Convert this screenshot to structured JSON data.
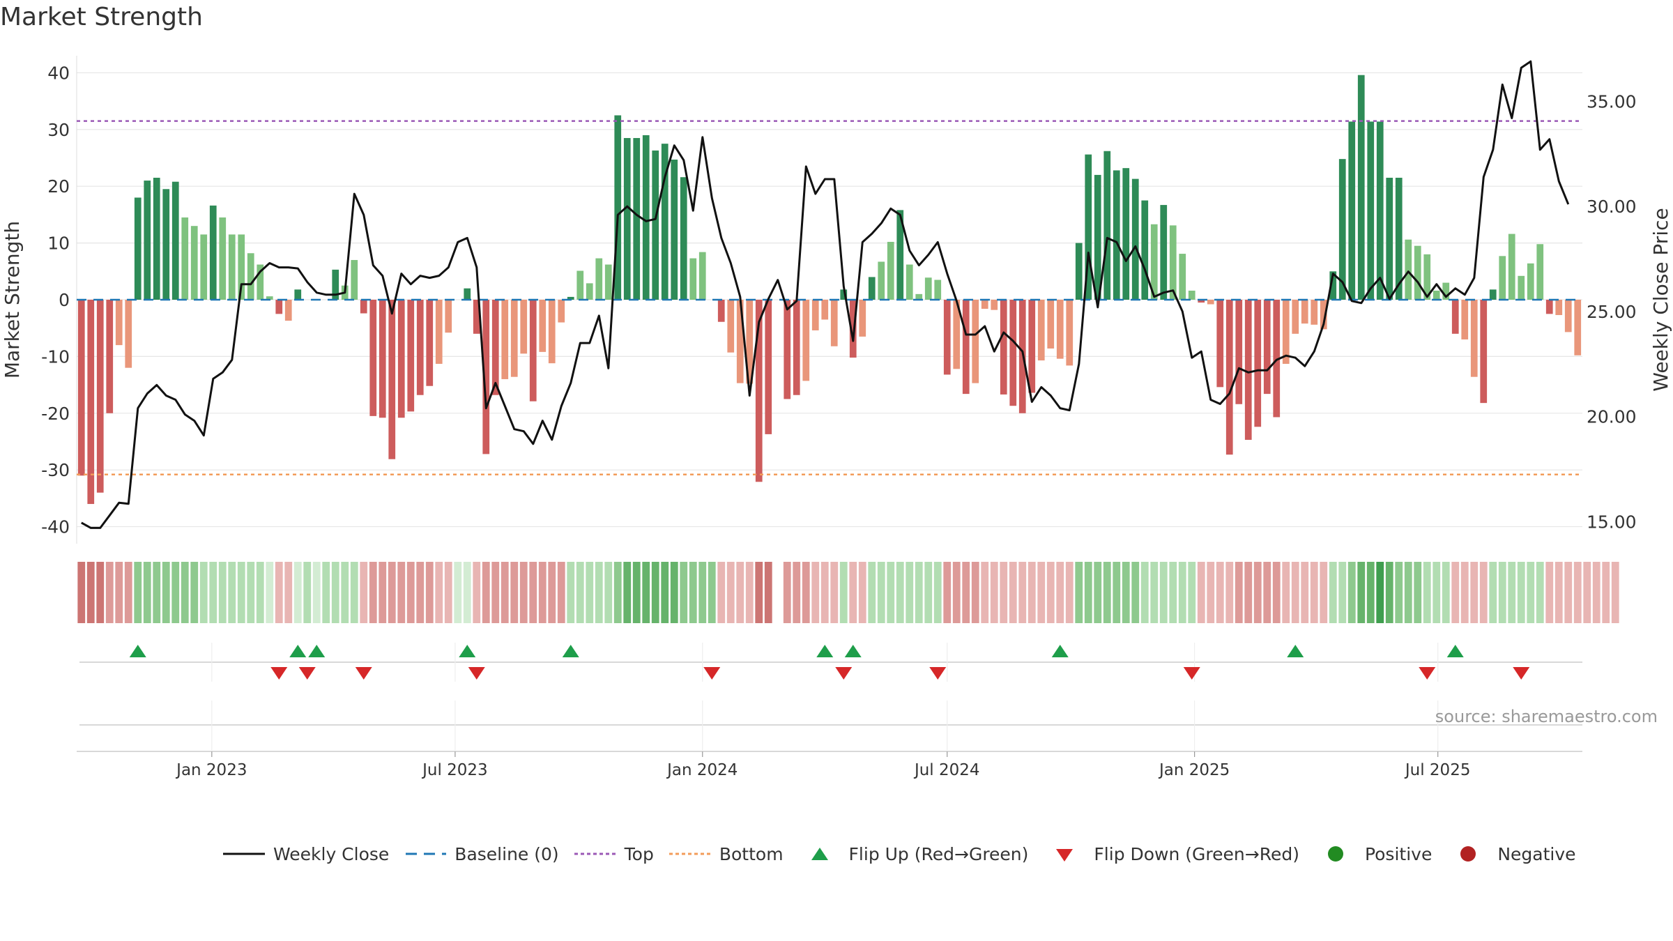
{
  "title": "Market Strength",
  "source": "source: sharemaestro.com",
  "colors": {
    "pos_dark": "#2e8b57",
    "pos_light": "#7fc27f",
    "neg_dark": "#cd5c5c",
    "neg_light": "#e9967a",
    "line": "#111111",
    "baseline": "#1f77b4",
    "top": "#9b59b6",
    "bottom": "#f39c5a",
    "flip_up": "#1e9e4a",
    "flip_down": "#d62728",
    "positive": "#228b22",
    "negative": "#b22222"
  },
  "legend": [
    {
      "key": "line",
      "label": "Weekly Close"
    },
    {
      "key": "baseline",
      "label": "Baseline (0)"
    },
    {
      "key": "top",
      "label": "Top"
    },
    {
      "key": "bottom",
      "label": "Bottom"
    },
    {
      "key": "flip_up",
      "label": "Flip Up (Red→Green)"
    },
    {
      "key": "flip_down",
      "label": "Flip Down (Green→Red)"
    },
    {
      "key": "positive",
      "label": "Positive"
    },
    {
      "key": "negative",
      "label": "Negative"
    }
  ],
  "chart_data": {
    "type": "bar",
    "x_start": "2022-09-26",
    "x_step_days": 7,
    "x_ticks": [
      "Jan 2023",
      "Jul 2023",
      "Jan 2024",
      "Jul 2024",
      "Jan 2025",
      "Jul 2025"
    ],
    "x_tick_dates": [
      "2023-01-01",
      "2023-07-01",
      "2024-01-01",
      "2024-07-01",
      "2025-01-01",
      "2025-07-01"
    ],
    "ylabel": "Market Strength",
    "y2label": "Weekly Close Price",
    "ylim": [
      -43,
      43
    ],
    "y_ticks": [
      40,
      30,
      20,
      10,
      0,
      -10,
      -20,
      -30,
      -40
    ],
    "y2lim": [
      13.95,
      37.17
    ],
    "y2_ticks": [
      "35.00",
      "30.00",
      "25.00",
      "20.00",
      "15.00"
    ],
    "top_level": 31.5,
    "bottom_level": -30.8,
    "strength": [
      -31,
      -36,
      -34,
      -20,
      -8,
      -12,
      18,
      21,
      21.5,
      19.5,
      20.8,
      14.5,
      13,
      11.5,
      16.6,
      14.5,
      11.5,
      11.5,
      8.2,
      6.2,
      0.6,
      -2.5,
      -3.7,
      1.8,
      0,
      0,
      0,
      5.3,
      2.5,
      7,
      -2.4,
      -20.5,
      -20.8,
      -28.1,
      -20.8,
      -19.7,
      -16.8,
      -15.2,
      -11.3,
      -5.8,
      0,
      2,
      -6,
      -27.2,
      -16.8,
      -14,
      -13.6,
      -9.5,
      -17.9,
      -9.2,
      -11.2,
      -4,
      0.5,
      5.1,
      2.9,
      7.3,
      6.2,
      32.5,
      28.5,
      28.5,
      29,
      26.3,
      27.5,
      24.7,
      21.6,
      7.3,
      8.4,
      0,
      -3.9,
      -9.3,
      -14.7,
      -14.8,
      -32.1,
      -23.7,
      0,
      -17.5,
      -16.8,
      -14.3,
      -5.4,
      -3.5,
      -8.2,
      1.8,
      -10.2,
      -6.5,
      4,
      6.7,
      10.2,
      15.8,
      6.2,
      1,
      3.9,
      3.5,
      -13.2,
      -12.2,
      -16.6,
      -14.7,
      -1.6,
      -1.8,
      -16.7,
      -18.7,
      -20,
      -16.4,
      -10.7,
      -8.6,
      -10.4,
      -11.6,
      10,
      25.6,
      22,
      26.2,
      22.8,
      23.2,
      21.3,
      17.5,
      13.3,
      16.7,
      13.1,
      8.1,
      1.6,
      -0.5,
      -0.8,
      -15.4,
      -27.3,
      -18.4,
      -24.7,
      -22.4,
      -16.6,
      -20.7,
      -11.3,
      -6,
      -4.2,
      -4.4,
      -5.2,
      5,
      24.8,
      31.4,
      39.6,
      31.4,
      31.4,
      21.5,
      21.5,
      10.6,
      9.5,
      8,
      1.6,
      3,
      -6,
      -7,
      -13.6,
      -18.2,
      1.8,
      7.7,
      11.6,
      4.2,
      6.4,
      9.8,
      -2.5,
      -2.7,
      -5.7,
      -9.8
    ],
    "close": [
      14.95,
      14.7,
      14.7,
      15.3,
      15.9,
      15.85,
      20.4,
      21.1,
      21.5,
      21,
      20.8,
      20.1,
      19.8,
      19.1,
      21.8,
      22.1,
      22.7,
      26.3,
      26.3,
      26.9,
      27.3,
      27.1,
      27.1,
      27.05,
      26.4,
      25.9,
      25.8,
      25.8,
      25.9,
      30.6,
      29.6,
      27.2,
      26.7,
      24.9,
      26.8,
      26.3,
      26.7,
      26.6,
      26.7,
      27.1,
      28.3,
      28.5,
      27.1,
      20.4,
      21.6,
      20.5,
      19.4,
      19.3,
      18.7,
      19.8,
      18.9,
      20.5,
      21.6,
      23.5,
      23.5,
      24.8,
      22.3,
      29.6,
      30,
      29.6,
      29.3,
      29.4,
      31.4,
      32.9,
      32.2,
      29.8,
      33.3,
      30.4,
      28.5,
      27.3,
      25.7,
      21,
      24.5,
      25.6,
      26.5,
      25.1,
      25.5,
      31.9,
      30.6,
      31.3,
      31.3,
      26.2,
      23.6,
      28.3,
      28.7,
      29.2,
      29.9,
      29.6,
      27.9,
      27.2,
      27.7,
      28.3,
      26.8,
      25.5,
      23.9,
      23.9,
      24.3,
      23.1,
      24,
      23.6,
      23.1,
      20.7,
      21.4,
      21,
      20.4,
      20.3,
      22.5,
      27.8,
      25.2,
      28.5,
      28.3,
      27.4,
      28.1,
      27,
      25.7,
      25.9,
      26,
      25,
      22.8,
      23.1,
      20.8,
      20.6,
      21.1,
      22.3,
      22.1,
      22.2,
      22.2,
      22.7,
      22.9,
      22.8,
      22.4,
      23.1,
      24.4,
      26.8,
      26.4,
      25.5,
      25.4,
      26.1,
      26.6,
      25.6,
      26.3,
      26.9,
      26.4,
      25.7,
      26.3,
      25.7,
      26.1,
      25.8,
      26.6,
      31.4,
      32.7,
      35.8,
      34.2,
      36.6,
      36.9,
      32.7,
      33.2,
      31.2,
      30.1
    ],
    "band_intensity": [
      3,
      3,
      3,
      2,
      2,
      2,
      2,
      2,
      2,
      2,
      2,
      2,
      2,
      1,
      1,
      1,
      1,
      1,
      1,
      1,
      0,
      1,
      1,
      0,
      1,
      0,
      1,
      1,
      1,
      1,
      1,
      2,
      2,
      2,
      2,
      2,
      2,
      2,
      1,
      1,
      0,
      0,
      1,
      2,
      2,
      2,
      2,
      2,
      2,
      2,
      2,
      2,
      1,
      1,
      1,
      1,
      1,
      2,
      3,
      3,
      3,
      3,
      3,
      3,
      2,
      2,
      2,
      2,
      1,
      1,
      1,
      1,
      3,
      3,
      -1,
      2,
      2,
      2,
      1,
      1,
      1,
      1,
      1,
      1,
      1,
      1,
      1,
      1,
      1,
      1,
      1,
      1,
      2,
      2,
      2,
      2,
      1,
      1,
      1,
      1,
      1,
      1,
      1,
      1,
      1,
      1,
      2,
      2,
      2,
      2,
      2,
      2,
      2,
      1,
      1,
      1,
      1,
      1,
      1,
      1,
      1,
      1,
      1,
      2,
      2,
      2,
      2,
      2,
      1,
      1,
      1,
      1,
      1,
      1,
      1,
      2,
      3,
      3,
      4,
      3,
      2,
      2,
      2,
      1,
      1,
      1,
      1,
      1,
      1,
      1,
      1,
      1,
      1,
      1,
      1,
      1,
      1,
      1,
      1,
      1,
      1,
      1,
      1,
      1
    ],
    "flip_up": [
      6,
      23,
      25,
      41,
      52,
      79,
      82,
      104,
      129,
      146
    ],
    "flip_down": [
      21,
      24,
      30,
      42,
      67,
      81,
      91,
      118,
      143,
      153
    ]
  }
}
